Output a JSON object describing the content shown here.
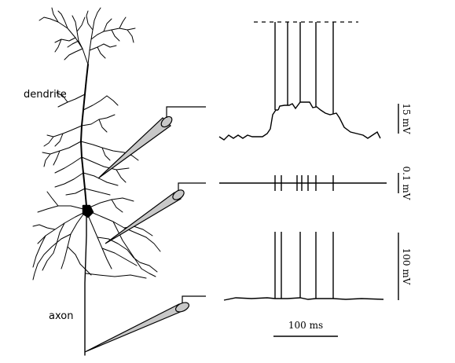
{
  "labels": {
    "dendrite": "dendrite",
    "axon": "axon"
  },
  "scale_bars": {
    "dendrite_voltage": "15 mV",
    "synaptic_voltage": "0.1 mV",
    "axon_voltage": "100 mV",
    "time": "100 ms"
  },
  "colors": {
    "ink": "#000000",
    "electrode_fill": "#c8c8c8"
  },
  "recordings": {
    "spike_times_ms": [
      14,
      30,
      54,
      90,
      143
    ],
    "synaptic_event_times_ms": [
      14,
      30,
      54,
      72,
      90,
      120,
      143
    ]
  }
}
